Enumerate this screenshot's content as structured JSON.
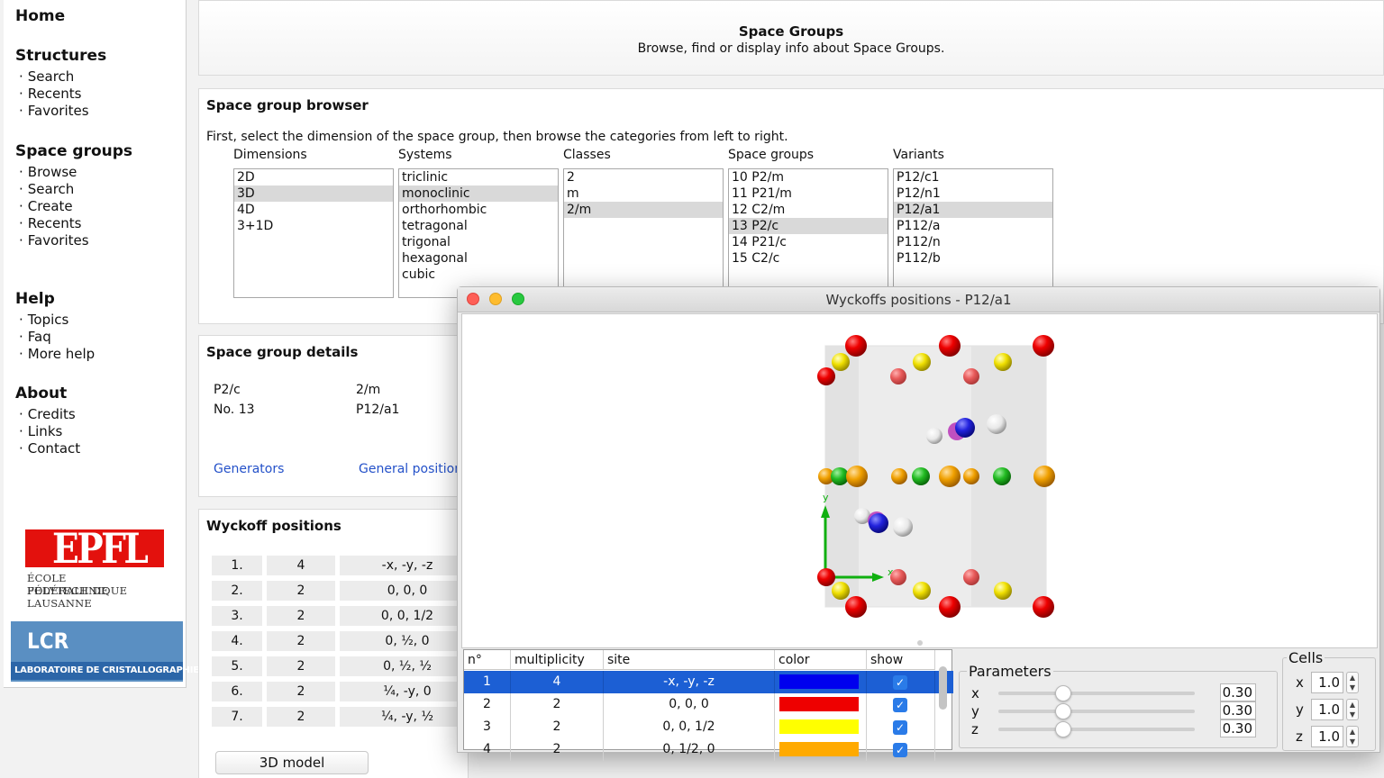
{
  "sidebar": {
    "sections": [
      {
        "title": "Home",
        "items": []
      },
      {
        "title": "Structures",
        "items": [
          "Search",
          "Recents",
          "Favorites"
        ]
      },
      {
        "title": "Space groups",
        "items": [
          "Browse",
          "Search",
          "Create",
          "Recents",
          "Favorites"
        ]
      },
      {
        "title": "Help",
        "items": [
          "Topics",
          "Faq",
          "More help"
        ]
      },
      {
        "title": "About",
        "items": [
          "Credits",
          "Links",
          "Contact"
        ]
      }
    ],
    "epfl_logo": {
      "mark": "EPFL",
      "line1": "ÉCOLE POLYTECHNIQUE",
      "line2": "FÉDÉRALE DE LAUSANNE"
    },
    "lcr_logo": {
      "mark": "LCR",
      "caption": "LABORATOIRE DE CRISTALLOGRAPHIE"
    }
  },
  "header": {
    "title": "Space Groups",
    "subtitle": "Browse, find or display info about Space Groups."
  },
  "browser": {
    "title": "Space group browser",
    "intro": "First, select the dimension of the space group, then browse the categories from left to right.",
    "columns": [
      {
        "header": "Dimensions",
        "items": [
          "2D",
          "3D",
          "4D",
          "3+1D"
        ],
        "selected": 1
      },
      {
        "header": "Systems",
        "items": [
          "triclinic",
          "monoclinic",
          "orthorhombic",
          "tetragonal",
          "trigonal",
          "hexagonal",
          "cubic"
        ],
        "selected": 1
      },
      {
        "header": "Classes",
        "items": [
          "2",
          "m",
          "2/m"
        ],
        "selected": 2
      },
      {
        "header": "Space groups",
        "items": [
          "10 P2/m",
          "11 P21/m",
          "12 C2/m",
          "13 P2/c",
          "14 P21/c",
          "15 C2/c"
        ],
        "selected": 3
      },
      {
        "header": "Variants",
        "items": [
          "P12/c1",
          "P12/n1",
          "P12/a1",
          "P112/a",
          "P112/n",
          "P112/b"
        ],
        "selected": 2
      }
    ]
  },
  "details": {
    "title": "Space group details",
    "symbol": "P2/c",
    "class": "2/m",
    "number": "No. 13",
    "variant": "P12/a1",
    "link_generators": "Generators",
    "link_general": "General position"
  },
  "wyckoff": {
    "title": "Wyckoff positions",
    "rows": [
      {
        "n": "1.",
        "mult": "4",
        "site": "-x, -y, -z"
      },
      {
        "n": "2.",
        "mult": "2",
        "site": "0, 0, 0"
      },
      {
        "n": "3.",
        "mult": "2",
        "site": "0, 0, 1/2"
      },
      {
        "n": "4.",
        "mult": "2",
        "site": "0, ½, 0"
      },
      {
        "n": "5.",
        "mult": "2",
        "site": "0, ½, ½"
      },
      {
        "n": "6.",
        "mult": "2",
        "site": "¼, -y, 0"
      },
      {
        "n": "7.",
        "mult": "2",
        "site": "¼, -y, ½"
      }
    ],
    "model_button": "3D model"
  },
  "window": {
    "title": "Wyckoffs positions - P12/a1",
    "axis_labels": {
      "x": "x",
      "y": "y"
    },
    "table": {
      "headers": [
        "n°",
        "multiplicity",
        "site",
        "color",
        "show"
      ],
      "rows": [
        {
          "n": "1",
          "mult": "4",
          "site": "-x, -y, -z",
          "color": "#0000ee",
          "show": true
        },
        {
          "n": "2",
          "mult": "2",
          "site": "0, 0, 0",
          "color": "#ee0000",
          "show": true
        },
        {
          "n": "3",
          "mult": "2",
          "site": "0, 0, 1/2",
          "color": "#ffff00",
          "show": true
        },
        {
          "n": "4",
          "mult": "2",
          "site": "0, 1/2, 0",
          "color": "#ffaa00",
          "show": true
        }
      ],
      "selected": 0
    },
    "parameters": {
      "legend": "Parameters",
      "items": [
        {
          "label": "x",
          "value": "0.30"
        },
        {
          "label": "y",
          "value": "0.30"
        },
        {
          "label": "z",
          "value": "0.30"
        }
      ]
    },
    "cells": {
      "legend": "Cells",
      "items": [
        {
          "label": "x",
          "value": "1.0"
        },
        {
          "label": "y",
          "value": "1.0"
        },
        {
          "label": "z",
          "value": "1.0"
        }
      ]
    }
  },
  "colors": {
    "accent": "#1c5fd4",
    "link": "#2451c9",
    "close": "#fe5f57",
    "minimize": "#febc2e",
    "zoom": "#28c840"
  }
}
